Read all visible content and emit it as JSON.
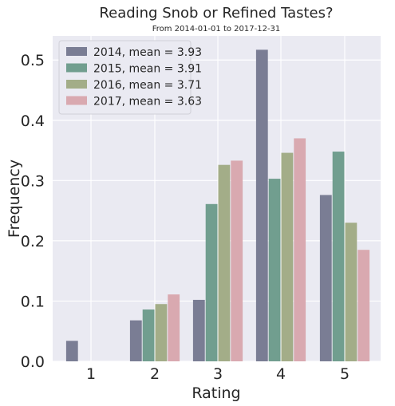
{
  "chart_data": {
    "type": "bar",
    "title": "Reading Snob or Refined Tastes?",
    "subtitle": "From 2014-01-01 to 2017-12-31",
    "xlabel": "Rating",
    "ylabel": "Frequency",
    "categories": [
      "1",
      "2",
      "3",
      "4",
      "5"
    ],
    "ylim": [
      0,
      0.54
    ],
    "yticks": [
      "0.0",
      "0.1",
      "0.2",
      "0.3",
      "0.4",
      "0.5"
    ],
    "grid": true,
    "legend_position": "top-left",
    "series": [
      {
        "name": "2014, mean = 3.93",
        "color": "#7a7d94",
        "values": [
          0.034,
          0.068,
          0.102,
          0.517,
          0.276
        ]
      },
      {
        "name": "2015, mean = 3.91",
        "color": "#719e8f",
        "values": [
          0.0,
          0.086,
          0.261,
          0.303,
          0.348
        ]
      },
      {
        "name": "2016, mean = 3.71",
        "color": "#a3ad88",
        "values": [
          0.0,
          0.095,
          0.326,
          0.346,
          0.23
        ]
      },
      {
        "name": "2017, mean = 3.63",
        "color": "#d9a9b0",
        "values": [
          0.0,
          0.111,
          0.333,
          0.37,
          0.185
        ]
      }
    ]
  }
}
